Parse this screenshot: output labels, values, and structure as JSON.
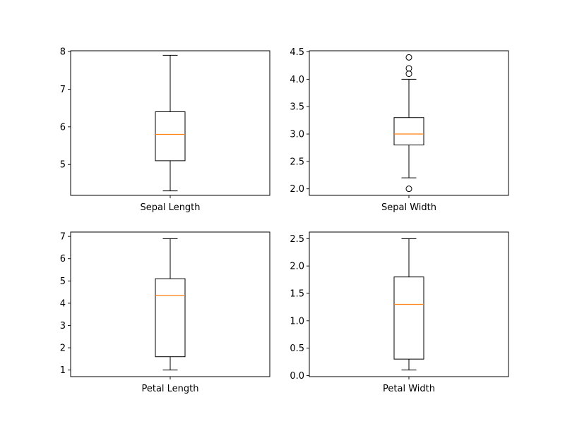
{
  "chart_data": [
    {
      "type": "box",
      "title": "",
      "xlabel": "Sepal Length",
      "ylabel": "",
      "ylim": [
        4.18,
        8.02
      ],
      "yticks": [
        5,
        6,
        7,
        8
      ],
      "ytick_labels": [
        "5",
        "6",
        "7",
        "8"
      ],
      "box": {
        "whisker_low": 4.3,
        "q1": 5.1,
        "median": 5.8,
        "q3": 6.4,
        "whisker_high": 7.9,
        "outliers": []
      }
    },
    {
      "type": "box",
      "title": "",
      "xlabel": "Sepal Width",
      "ylabel": "",
      "ylim": [
        1.88,
        4.52
      ],
      "yticks": [
        2.0,
        2.5,
        3.0,
        3.5,
        4.0,
        4.5
      ],
      "ytick_labels": [
        "2.0",
        "2.5",
        "3.0",
        "3.5",
        "4.0",
        "4.5"
      ],
      "box": {
        "whisker_low": 2.2,
        "q1": 2.8,
        "median": 3.0,
        "q3": 3.3,
        "whisker_high": 4.0,
        "outliers": [
          4.4,
          4.2,
          4.1,
          2.0
        ]
      }
    },
    {
      "type": "box",
      "title": "",
      "xlabel": "Petal Length",
      "ylabel": "",
      "ylim": [
        0.705,
        7.195
      ],
      "yticks": [
        1,
        2,
        3,
        4,
        5,
        6,
        7
      ],
      "ytick_labels": [
        "1",
        "2",
        "3",
        "4",
        "5",
        "6",
        "7"
      ],
      "box": {
        "whisker_low": 1.0,
        "q1": 1.6,
        "median": 4.35,
        "q3": 5.1,
        "whisker_high": 6.9,
        "outliers": []
      }
    },
    {
      "type": "box",
      "title": "",
      "xlabel": "Petal Width",
      "ylabel": "",
      "ylim": [
        -0.02,
        2.62
      ],
      "yticks": [
        0.0,
        0.5,
        1.0,
        1.5,
        2.0,
        2.5
      ],
      "ytick_labels": [
        "0.0",
        "0.5",
        "1.0",
        "1.5",
        "2.0",
        "2.5"
      ],
      "box": {
        "whisker_low": 0.1,
        "q1": 0.3,
        "median": 1.3,
        "q3": 1.8,
        "whisker_high": 2.5,
        "outliers": []
      }
    }
  ],
  "colors": {
    "median": "#ff7f0e",
    "box": "#000000",
    "axes": "#000000",
    "background": "#ffffff"
  }
}
